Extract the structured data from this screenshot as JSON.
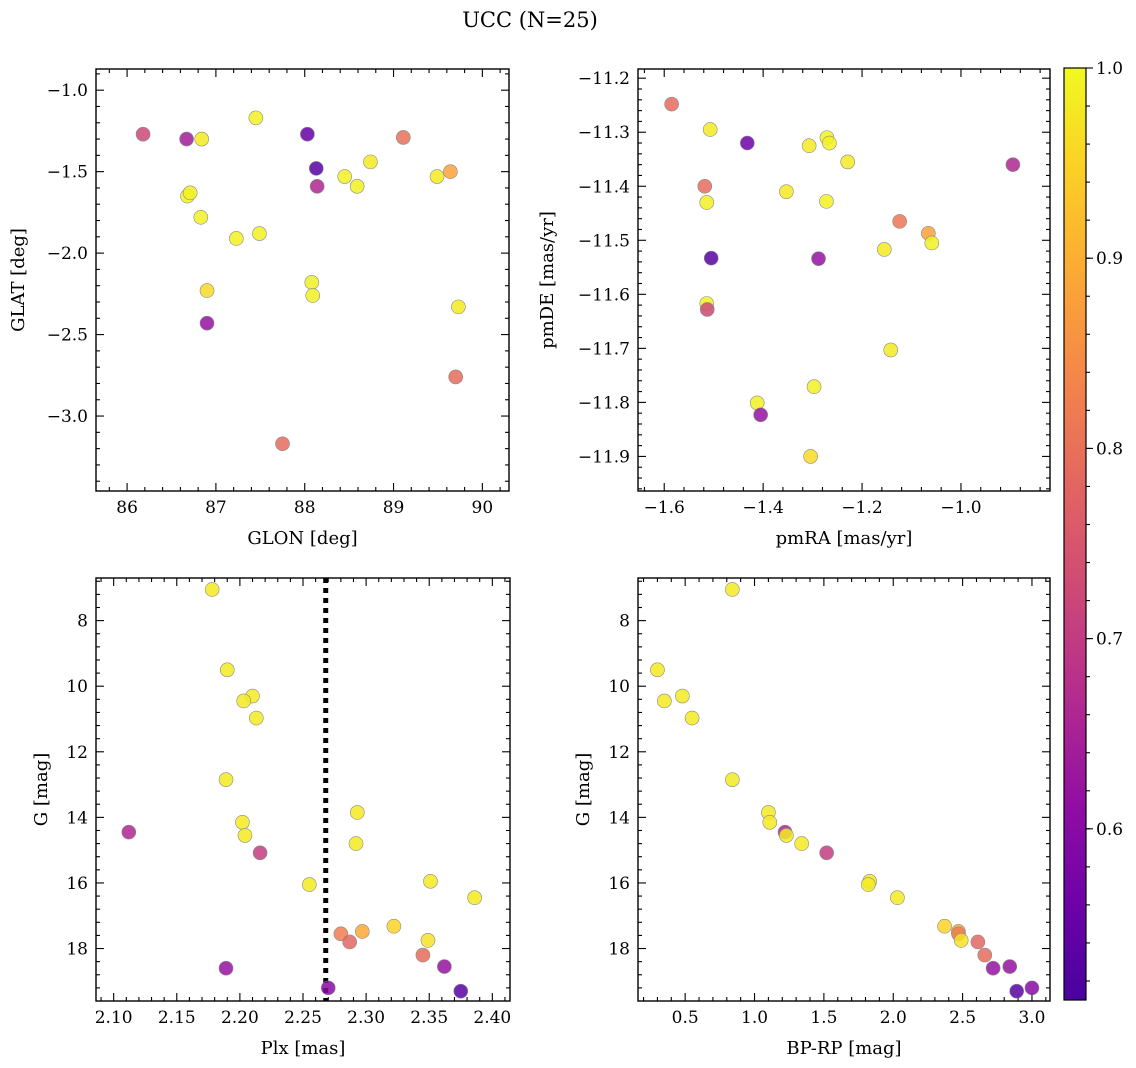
{
  "figure": {
    "title": "UCC (N=25)"
  },
  "colorbar": {
    "colormap": "plasma",
    "range": [
      0.51,
      1.0
    ],
    "ticks": [
      1.0,
      0.9,
      0.8,
      0.7,
      0.6
    ],
    "tick_labels": [
      "1.0",
      "0.9",
      "0.8",
      "0.7",
      "0.6"
    ]
  },
  "chart_data": [
    {
      "type": "scatter",
      "panel": "top-left",
      "xlabel": "GLON [deg]",
      "ylabel": "GLAT [deg]",
      "xlim": [
        85.65,
        90.3
      ],
      "ylim": [
        -3.46,
        -0.87
      ],
      "yinvert": false,
      "xticks": [
        86,
        87,
        88,
        89,
        90
      ],
      "xtick_labels": [
        "86",
        "87",
        "88",
        "89",
        "90"
      ],
      "yticks": [
        -1.0,
        -1.5,
        -2.0,
        -2.5,
        -3.0
      ],
      "ytick_labels": [
        "−1.0",
        "−1.5",
        "−2.0",
        "−2.5",
        "−3.0"
      ],
      "points": [
        {
          "x": 86.18,
          "y": -1.27,
          "c": 0.72
        },
        {
          "x": 86.67,
          "y": -1.3,
          "c": 0.64
        },
        {
          "x": 86.84,
          "y": -1.3,
          "c": 0.98
        },
        {
          "x": 87.45,
          "y": -1.17,
          "c": 0.99
        },
        {
          "x": 88.03,
          "y": -1.27,
          "c": 0.55
        },
        {
          "x": 88.13,
          "y": -1.48,
          "c": 0.53
        },
        {
          "x": 88.14,
          "y": -1.59,
          "c": 0.66
        },
        {
          "x": 88.45,
          "y": -1.53,
          "c": 0.99
        },
        {
          "x": 88.59,
          "y": -1.59,
          "c": 0.99
        },
        {
          "x": 88.74,
          "y": -1.44,
          "c": 0.98
        },
        {
          "x": 89.11,
          "y": -1.29,
          "c": 0.8
        },
        {
          "x": 89.49,
          "y": -1.53,
          "c": 0.98
        },
        {
          "x": 89.64,
          "y": -1.5,
          "c": 0.88
        },
        {
          "x": 86.68,
          "y": -1.65,
          "c": 0.99
        },
        {
          "x": 86.71,
          "y": -1.63,
          "c": 0.99
        },
        {
          "x": 86.83,
          "y": -1.78,
          "c": 0.99
        },
        {
          "x": 87.23,
          "y": -1.91,
          "c": 0.99
        },
        {
          "x": 87.49,
          "y": -1.88,
          "c": 0.99
        },
        {
          "x": 88.08,
          "y": -2.18,
          "c": 0.99
        },
        {
          "x": 88.09,
          "y": -2.26,
          "c": 0.99
        },
        {
          "x": 86.9,
          "y": -2.23,
          "c": 0.96
        },
        {
          "x": 86.9,
          "y": -2.43,
          "c": 0.62
        },
        {
          "x": 89.73,
          "y": -2.33,
          "c": 0.98
        },
        {
          "x": 89.7,
          "y": -2.76,
          "c": 0.79
        },
        {
          "x": 87.75,
          "y": -3.17,
          "c": 0.79
        }
      ]
    },
    {
      "type": "scatter",
      "panel": "top-right",
      "xlabel": "pmRA [mas/yr]",
      "ylabel": "pmDE [mas/yr]",
      "xlim": [
        -1.653,
        -0.82
      ],
      "ylim": [
        -11.964,
        -11.183
      ],
      "yinvert": false,
      "xticks": [
        -1.6,
        -1.4,
        -1.2,
        -1.0
      ],
      "xtick_labels": [
        "−1.6",
        "−1.4",
        "−1.2",
        "−1.0"
      ],
      "yticks": [
        -11.2,
        -11.3,
        -11.4,
        -11.5,
        -11.6,
        -11.7,
        -11.8,
        -11.9
      ],
      "ytick_labels": [
        "−11.2",
        "−11.3",
        "−11.4",
        "−11.5",
        "−11.6",
        "−11.7",
        "−11.8",
        "−11.9"
      ],
      "points": [
        {
          "x": -1.585,
          "y": -11.248,
          "c": 0.79
        },
        {
          "x": -1.507,
          "y": -11.295,
          "c": 0.98
        },
        {
          "x": -1.432,
          "y": -11.32,
          "c": 0.56
        },
        {
          "x": -1.307,
          "y": -11.325,
          "c": 0.98
        },
        {
          "x": -1.271,
          "y": -11.31,
          "c": 0.99
        },
        {
          "x": -1.266,
          "y": -11.32,
          "c": 0.99
        },
        {
          "x": -1.229,
          "y": -11.355,
          "c": 0.98
        },
        {
          "x": -0.895,
          "y": -11.36,
          "c": 0.66
        },
        {
          "x": -1.518,
          "y": -11.4,
          "c": 0.79
        },
        {
          "x": -1.353,
          "y": -11.41,
          "c": 0.98
        },
        {
          "x": -1.514,
          "y": -11.43,
          "c": 0.99
        },
        {
          "x": -1.272,
          "y": -11.428,
          "c": 0.99
        },
        {
          "x": -1.124,
          "y": -11.465,
          "c": 0.81
        },
        {
          "x": -1.066,
          "y": -11.487,
          "c": 0.88
        },
        {
          "x": -1.059,
          "y": -11.505,
          "c": 0.99
        },
        {
          "x": -1.155,
          "y": -11.517,
          "c": 0.98
        },
        {
          "x": -1.505,
          "y": -11.533,
          "c": 0.53
        },
        {
          "x": -1.288,
          "y": -11.534,
          "c": 0.62
        },
        {
          "x": -1.514,
          "y": -11.617,
          "c": 0.99
        },
        {
          "x": -1.513,
          "y": -11.628,
          "c": 0.72
        },
        {
          "x": -1.142,
          "y": -11.703,
          "c": 0.98
        },
        {
          "x": -1.297,
          "y": -11.771,
          "c": 0.99
        },
        {
          "x": -1.412,
          "y": -11.801,
          "c": 0.99
        },
        {
          "x": -1.405,
          "y": -11.823,
          "c": 0.62
        },
        {
          "x": -1.304,
          "y": -11.9,
          "c": 0.96
        }
      ]
    },
    {
      "type": "scatter",
      "panel": "bottom-left",
      "xlabel": "Plx [mas]",
      "ylabel": "G [mag]",
      "xlim": [
        2.086,
        2.414
      ],
      "ylim": [
        6.7,
        19.6
      ],
      "yinvert": true,
      "xticks": [
        2.1,
        2.15,
        2.2,
        2.25,
        2.3,
        2.35,
        2.4
      ],
      "xtick_labels": [
        "2.10",
        "2.15",
        "2.20",
        "2.25",
        "2.30",
        "2.35",
        "2.40"
      ],
      "yticks": [
        8,
        10,
        12,
        14,
        16,
        18
      ],
      "ytick_labels": [
        "8",
        "10",
        "12",
        "14",
        "16",
        "18"
      ],
      "vline": {
        "x": 2.268,
        "style": "dotted"
      },
      "points": [
        {
          "x": 2.178,
          "y": 7.05,
          "c": 0.98
        },
        {
          "x": 2.19,
          "y": 9.5,
          "c": 0.98
        },
        {
          "x": 2.21,
          "y": 10.3,
          "c": 0.98
        },
        {
          "x": 2.203,
          "y": 10.45,
          "c": 0.98
        },
        {
          "x": 2.213,
          "y": 10.97,
          "c": 0.98
        },
        {
          "x": 2.189,
          "y": 12.85,
          "c": 0.98
        },
        {
          "x": 2.293,
          "y": 13.85,
          "c": 0.98
        },
        {
          "x": 2.202,
          "y": 14.15,
          "c": 0.98
        },
        {
          "x": 2.112,
          "y": 14.45,
          "c": 0.66
        },
        {
          "x": 2.204,
          "y": 14.55,
          "c": 0.98
        },
        {
          "x": 2.292,
          "y": 14.8,
          "c": 0.98
        },
        {
          "x": 2.216,
          "y": 15.08,
          "c": 0.7
        },
        {
          "x": 2.351,
          "y": 15.95,
          "c": 0.98
        },
        {
          "x": 2.255,
          "y": 16.05,
          "c": 0.98
        },
        {
          "x": 2.386,
          "y": 16.45,
          "c": 0.98
        },
        {
          "x": 2.322,
          "y": 17.32,
          "c": 0.95
        },
        {
          "x": 2.297,
          "y": 17.48,
          "c": 0.89
        },
        {
          "x": 2.28,
          "y": 17.55,
          "c": 0.82
        },
        {
          "x": 2.349,
          "y": 17.75,
          "c": 0.97
        },
        {
          "x": 2.287,
          "y": 17.8,
          "c": 0.78
        },
        {
          "x": 2.345,
          "y": 18.2,
          "c": 0.79
        },
        {
          "x": 2.362,
          "y": 18.55,
          "c": 0.62
        },
        {
          "x": 2.189,
          "y": 18.6,
          "c": 0.62
        },
        {
          "x": 2.27,
          "y": 19.2,
          "c": 0.6
        },
        {
          "x": 2.375,
          "y": 19.3,
          "c": 0.53
        }
      ]
    },
    {
      "type": "scatter",
      "panel": "bottom-right",
      "xlabel": "BP-RP [mag]",
      "ylabel": "G [mag]",
      "xlim": [
        0.16,
        3.13
      ],
      "ylim": [
        6.7,
        19.6
      ],
      "yinvert": true,
      "xticks": [
        0.5,
        1.0,
        1.5,
        2.0,
        2.5,
        3.0
      ],
      "xtick_labels": [
        "0.5",
        "1.0",
        "1.5",
        "2.0",
        "2.5",
        "3.0"
      ],
      "yticks": [
        8,
        10,
        12,
        14,
        16,
        18
      ],
      "ytick_labels": [
        "8",
        "10",
        "12",
        "14",
        "16",
        "18"
      ],
      "points": [
        {
          "x": 0.84,
          "y": 7.05,
          "c": 0.98
        },
        {
          "x": 0.3,
          "y": 9.5,
          "c": 0.98
        },
        {
          "x": 0.48,
          "y": 10.3,
          "c": 0.98
        },
        {
          "x": 0.35,
          "y": 10.45,
          "c": 0.98
        },
        {
          "x": 0.55,
          "y": 10.97,
          "c": 0.98
        },
        {
          "x": 0.84,
          "y": 12.85,
          "c": 0.98
        },
        {
          "x": 1.1,
          "y": 13.85,
          "c": 0.98
        },
        {
          "x": 1.11,
          "y": 14.15,
          "c": 0.98
        },
        {
          "x": 1.22,
          "y": 14.45,
          "c": 0.66
        },
        {
          "x": 1.23,
          "y": 14.55,
          "c": 0.98
        },
        {
          "x": 1.34,
          "y": 14.8,
          "c": 0.98
        },
        {
          "x": 1.52,
          "y": 15.08,
          "c": 0.7
        },
        {
          "x": 1.83,
          "y": 15.95,
          "c": 0.98
        },
        {
          "x": 1.82,
          "y": 16.05,
          "c": 0.98
        },
        {
          "x": 2.03,
          "y": 16.45,
          "c": 0.98
        },
        {
          "x": 2.37,
          "y": 17.32,
          "c": 0.95
        },
        {
          "x": 2.47,
          "y": 17.48,
          "c": 0.89
        },
        {
          "x": 2.47,
          "y": 17.55,
          "c": 0.82
        },
        {
          "x": 2.49,
          "y": 17.75,
          "c": 0.97
        },
        {
          "x": 2.61,
          "y": 17.8,
          "c": 0.78
        },
        {
          "x": 2.66,
          "y": 18.2,
          "c": 0.79
        },
        {
          "x": 2.84,
          "y": 18.55,
          "c": 0.62
        },
        {
          "x": 2.72,
          "y": 18.6,
          "c": 0.62
        },
        {
          "x": 3.0,
          "y": 19.2,
          "c": 0.6
        },
        {
          "x": 2.89,
          "y": 19.3,
          "c": 0.53
        }
      ]
    }
  ]
}
